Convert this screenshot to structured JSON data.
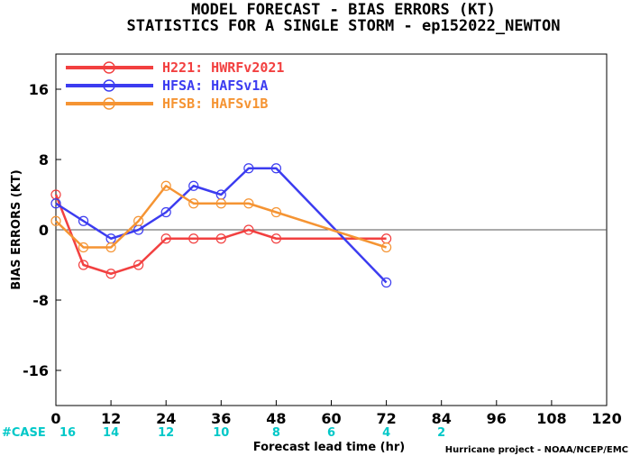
{
  "title_line1": "MODEL FORECAST - BIAS ERRORS (KT)",
  "title_line2": "STATISTICS FOR A SINGLE STORM - ep152022_NEWTON",
  "credit": "Hurricane project - NOAA/NCEP/EMC",
  "chart_data": {
    "type": "line",
    "xlabel": "Forecast lead time (hr)",
    "ylabel": "BIAS ERRORS (KT)",
    "xlim": [
      0,
      120
    ],
    "ylim": [
      -20,
      20
    ],
    "x_ticks": [
      0,
      12,
      24,
      36,
      48,
      60,
      72,
      84,
      96,
      108,
      120
    ],
    "y_ticks": [
      -16,
      -8,
      0,
      8,
      16
    ],
    "legend_position": "top-left",
    "zero_line": true,
    "case_label": "#CASE",
    "cases": [
      {
        "x": 0,
        "n": "16"
      },
      {
        "x": 12,
        "n": "14"
      },
      {
        "x": 24,
        "n": "12"
      },
      {
        "x": 36,
        "n": "10"
      },
      {
        "x": 48,
        "n": "8"
      },
      {
        "x": 60,
        "n": "6"
      },
      {
        "x": 72,
        "n": "4"
      },
      {
        "x": 84,
        "n": "2"
      }
    ],
    "series": [
      {
        "name": "H221: HWRFv2021",
        "color": "#f24040",
        "x": [
          0,
          6,
          12,
          18,
          24,
          30,
          36,
          42,
          48,
          72
        ],
        "y": [
          4,
          -4,
          -5,
          -4,
          -1,
          -1,
          -1,
          0,
          -1,
          -1
        ]
      },
      {
        "name": "HFSA: HAFSv1A",
        "color": "#3c3cf0",
        "x": [
          0,
          6,
          12,
          18,
          24,
          30,
          36,
          42,
          48,
          72
        ],
        "y": [
          3,
          1,
          -1,
          0,
          2,
          5,
          4,
          7,
          7,
          -6
        ]
      },
      {
        "name": "HFSB: HAFSv1B",
        "color": "#f59433",
        "x": [
          0,
          6,
          12,
          18,
          24,
          30,
          36,
          42,
          48,
          72
        ],
        "y": [
          1,
          -2,
          -2,
          1,
          5,
          3,
          3,
          3,
          2,
          -2
        ]
      }
    ]
  }
}
